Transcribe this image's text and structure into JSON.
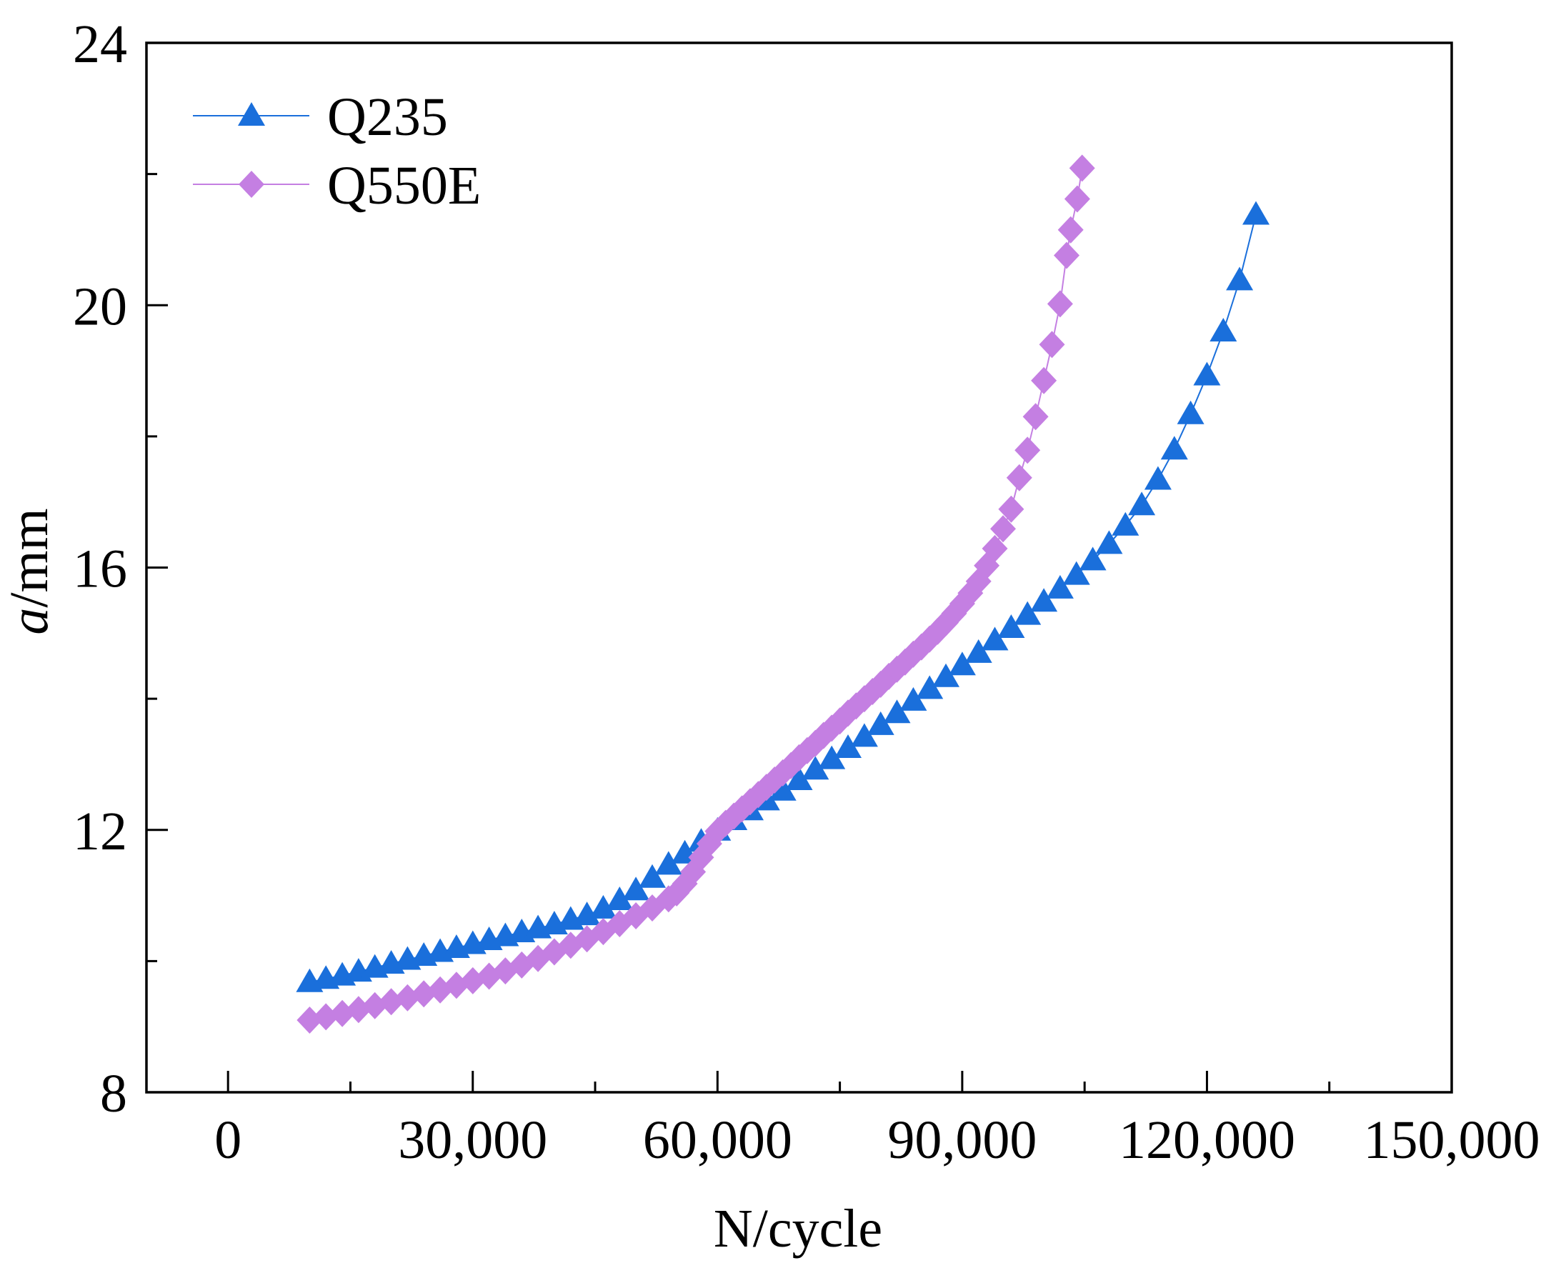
{
  "chart_data": {
    "type": "line",
    "title": "",
    "xlabel": "N/cycle",
    "ylabel_italic": "a",
    "ylabel_rest": "/mm",
    "xlim": [
      -10000,
      150000
    ],
    "ylim": [
      8,
      24
    ],
    "xticks": [
      0,
      30000,
      60000,
      90000,
      120000,
      150000
    ],
    "xtick_labels": [
      "0",
      "30,000",
      "60,000",
      "90,000",
      "120,000",
      "150,000"
    ],
    "xminor_ticks": [
      15000,
      45000,
      75000,
      105000,
      135000
    ],
    "yticks": [
      8,
      12,
      16,
      20,
      24
    ],
    "ytick_labels": [
      "8",
      "12",
      "16",
      "20",
      "24"
    ],
    "yminor_ticks": [
      10,
      14,
      18,
      22
    ],
    "grid": false,
    "legend": {
      "position": "top-left"
    },
    "series": [
      {
        "name": "Q235",
        "marker": "triangle-up",
        "color": "#1A6FDB",
        "x": [
          10000,
          12000,
          14000,
          16000,
          18000,
          20000,
          22000,
          24000,
          26000,
          28000,
          30000,
          32000,
          34000,
          36000,
          38000,
          40000,
          42000,
          44000,
          46000,
          48000,
          50000,
          52000,
          54000,
          56000,
          58000,
          60000,
          62000,
          64000,
          66000,
          68000,
          70000,
          72000,
          74000,
          76000,
          78000,
          80000,
          82000,
          84000,
          86000,
          88000,
          90000,
          92000,
          94000,
          96000,
          98000,
          100000,
          102000,
          104000,
          106000,
          108000,
          110000,
          112000,
          114000,
          116000,
          118000,
          120000,
          122000,
          124000,
          126000
        ],
        "y": [
          9.68,
          9.73,
          9.78,
          9.84,
          9.9,
          9.96,
          10.02,
          10.08,
          10.14,
          10.2,
          10.26,
          10.32,
          10.38,
          10.44,
          10.5,
          10.56,
          10.63,
          10.7,
          10.8,
          10.93,
          11.08,
          11.27,
          11.47,
          11.64,
          11.82,
          11.99,
          12.15,
          12.3,
          12.45,
          12.6,
          12.76,
          12.92,
          13.08,
          13.25,
          13.42,
          13.6,
          13.78,
          13.97,
          14.15,
          14.33,
          14.51,
          14.7,
          14.89,
          15.08,
          15.28,
          15.48,
          15.68,
          15.89,
          16.11,
          16.36,
          16.64,
          16.95,
          17.34,
          17.8,
          18.34,
          18.93,
          19.6,
          20.38,
          21.38
        ]
      },
      {
        "name": "Q550E",
        "marker": "diamond",
        "color": "#C47FE2",
        "x": [
          10000,
          12000,
          14000,
          16000,
          18000,
          20000,
          22000,
          24000,
          26000,
          28000,
          30000,
          32000,
          34000,
          36000,
          38000,
          40000,
          42000,
          44000,
          46000,
          48000,
          50000,
          52000,
          54000,
          55000,
          56000,
          57000,
          58000,
          59000,
          60000,
          61000,
          62000,
          63000,
          64000,
          65000,
          66000,
          67000,
          68000,
          69000,
          70000,
          71000,
          72000,
          73000,
          74000,
          75000,
          76000,
          77000,
          78000,
          79000,
          80000,
          81000,
          82000,
          83000,
          84000,
          85000,
          86000,
          87000,
          88000,
          89000,
          90000,
          91000,
          92000,
          93000,
          94000,
          95000,
          96000,
          97000,
          98000,
          99000,
          100000,
          101000,
          102000,
          102800,
          103300,
          104100,
          104700
        ],
        "y": [
          9.1,
          9.15,
          9.2,
          9.26,
          9.32,
          9.38,
          9.44,
          9.5,
          9.56,
          9.63,
          9.7,
          9.77,
          9.85,
          9.94,
          10.04,
          10.14,
          10.24,
          10.34,
          10.45,
          10.57,
          10.69,
          10.81,
          10.95,
          11.04,
          11.18,
          11.36,
          11.58,
          11.79,
          11.98,
          12.1,
          12.21,
          12.32,
          12.43,
          12.54,
          12.65,
          12.76,
          12.87,
          12.98,
          13.1,
          13.21,
          13.32,
          13.44,
          13.55,
          13.66,
          13.78,
          13.89,
          14.0,
          14.11,
          14.22,
          14.34,
          14.45,
          14.56,
          14.68,
          14.79,
          14.91,
          15.03,
          15.16,
          15.3,
          15.45,
          15.61,
          15.79,
          16.03,
          16.29,
          16.59,
          16.89,
          17.37,
          17.79,
          18.3,
          18.85,
          19.4,
          20.02,
          20.76,
          21.15,
          21.62,
          22.09
        ]
      }
    ]
  }
}
